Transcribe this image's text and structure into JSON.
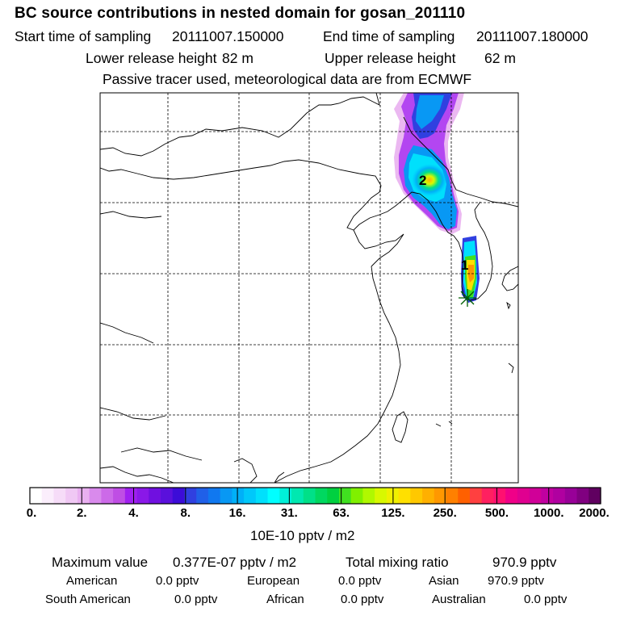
{
  "header": {
    "title": "BC  source contributions in nested domain for gosan_201110",
    "start_label": "Start time of sampling",
    "start_value": "20111007.150000",
    "end_label": "End time of sampling",
    "end_value": "20111007.180000",
    "lower_label": "Lower release height",
    "lower_value": "82 m",
    "upper_label": "Upper release height",
    "upper_value": "62 m",
    "tracer_note": "Passive tracer used, meteorological data are from ECMWF"
  },
  "map": {
    "markers": [
      {
        "label": "1",
        "lon": 126.5,
        "lat": 36.5
      },
      {
        "label": "2",
        "lon": 121.8,
        "lat": 40.2
      }
    ],
    "receptor": {
      "name": "gosan",
      "lon": 126.2,
      "lat": 33.3
    }
  },
  "colorbar": {
    "labels": [
      "0.",
      "2.",
      "4.",
      "8.",
      "16.",
      "31.",
      "63.",
      "125.",
      "250.",
      "500.",
      "1000.",
      "2000."
    ],
    "colors": [
      "#ffffff",
      "#fbeefc",
      "#f6dcf8",
      "#f0c8f4",
      "#e9b0f0",
      "#d98aec",
      "#cc6ae8",
      "#bf4ee4",
      "#a020f0",
      "#8a18e8",
      "#7010e0",
      "#5a10dc",
      "#3c0cd8",
      "#3040e0",
      "#2060e8",
      "#1078f0",
      "#0898f4",
      "#00b0f8",
      "#00c8fa",
      "#00e0fc",
      "#00ffff",
      "#00f0d8",
      "#00e8b0",
      "#00e088",
      "#00d860",
      "#00d040",
      "#40e020",
      "#80f000",
      "#b0f800",
      "#d8f800",
      "#f0f000",
      "#ffe000",
      "#ffc800",
      "#ffb000",
      "#ff9800",
      "#ff8000",
      "#ff6000",
      "#ff4040",
      "#ff2060",
      "#ff1070",
      "#f00088",
      "#e00090",
      "#d00098",
      "#c000a0",
      "#b000a0",
      "#980098",
      "#800080",
      "#600060"
    ],
    "unit": "10E-10 pptv / m2"
  },
  "summary": {
    "max_label": "Maximum value",
    "max_value": "0.377E-07 pptv / m2",
    "total_label": "Total mixing ratio",
    "total_value": "970.9 pptv",
    "regions": [
      {
        "name": "American",
        "value": "0.0 pptv"
      },
      {
        "name": "European",
        "value": "0.0 pptv"
      },
      {
        "name": "Asian",
        "value": "970.9 pptv"
      },
      {
        "name": "South American",
        "value": "0.0 pptv"
      },
      {
        "name": "African",
        "value": "0.0 pptv"
      },
      {
        "name": "Australian",
        "value": "0.0 pptv"
      }
    ]
  }
}
